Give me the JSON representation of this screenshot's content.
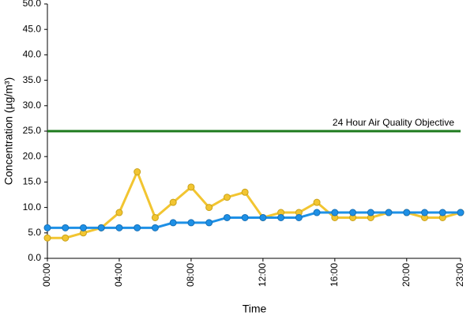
{
  "chart_data": {
    "type": "line",
    "categories": [
      "00:00",
      null,
      null,
      null,
      "04:00",
      null,
      null,
      null,
      "08:00",
      null,
      null,
      null,
      "12:00",
      null,
      null,
      null,
      "16:00",
      null,
      null,
      null,
      "20:00",
      null,
      null,
      "23:00"
    ],
    "series": [
      {
        "color": "#f2c531",
        "values": [
          4,
          4,
          5,
          6,
          9,
          17,
          8,
          11,
          14,
          10,
          12,
          13,
          8,
          9,
          9,
          11,
          8,
          8,
          8,
          9,
          9,
          8,
          8,
          9
        ]
      },
      {
        "color": "#1e90e6",
        "values": [
          6,
          6,
          6,
          6,
          6,
          6,
          6,
          7,
          7,
          7,
          8,
          8,
          8,
          8,
          8,
          9,
          9,
          9,
          9,
          9,
          9,
          9,
          9,
          9
        ]
      }
    ],
    "reference_line": {
      "value": 25,
      "color": "#1e7a1e",
      "label": "24 Hour Air Quality Objective"
    },
    "ylim": [
      0,
      50
    ],
    "yticks": [
      {
        "value": 0,
        "label": "0.0"
      },
      {
        "value": 5,
        "label": "5.0"
      },
      {
        "value": 10,
        "label": "10.0"
      },
      {
        "value": 15,
        "label": "15.0"
      },
      {
        "value": 20,
        "label": "20.0"
      },
      {
        "value": 25,
        "label": "25.0"
      },
      {
        "value": 30,
        "label": "30.0"
      },
      {
        "value": 35,
        "label": "35.0"
      },
      {
        "value": 40,
        "label": "40.0"
      },
      {
        "value": 45,
        "label": "45.0"
      },
      {
        "value": 50,
        "label": "50.0"
      }
    ],
    "xlabel": "Time",
    "ylabel": "Concentration (µg/m³)",
    "grid": false
  }
}
